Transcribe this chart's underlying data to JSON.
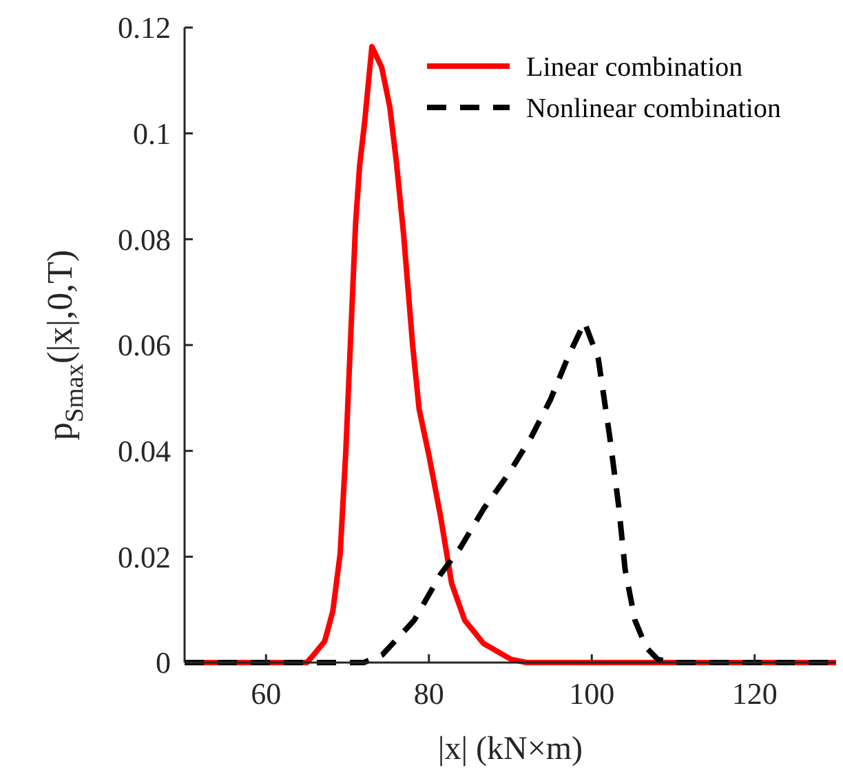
{
  "chart_data": {
    "type": "line",
    "xlabel": "|x| (kN×m)",
    "ylabel": "p$_{Smax}$(|x|,0,T)",
    "xlim": [
      50,
      130
    ],
    "ylim": [
      0,
      0.12
    ],
    "xticks": [
      60,
      80,
      100,
      120
    ],
    "yticks": [
      0,
      0.02,
      0.04,
      0.06,
      0.08,
      0.1,
      0.12
    ],
    "grid": false,
    "legend": "top right",
    "series": [
      {
        "name": "Linear combination",
        "color": "#ff0000",
        "line_style": "solid",
        "x": [
          50,
          65,
          65.6,
          67.2,
          68.2,
          69.1,
          69.8,
          70.4,
          71.0,
          71.5,
          72.1,
          73.0,
          74.2,
          75.2,
          76.0,
          76.9,
          78.0,
          78.8,
          80.0,
          81.4,
          82.8,
          84.4,
          86.7,
          90.1,
          92,
          130
        ],
        "values": [
          0,
          0,
          0.001,
          0.004,
          0.0097,
          0.0205,
          0.04,
          0.0617,
          0.083,
          0.094,
          0.102,
          0.1164,
          0.1125,
          0.105,
          0.0947,
          0.0808,
          0.06,
          0.0479,
          0.0392,
          0.0279,
          0.0149,
          0.008,
          0.0036,
          0.0006,
          0,
          0
        ]
      },
      {
        "name": "Nonlinear combination",
        "color": "#000000",
        "line_style": "dashed",
        "x": [
          50,
          72,
          74.3,
          78.2,
          81.4,
          83.9,
          86.7,
          89.8,
          92.6,
          94.9,
          97.1,
          99.1,
          100.8,
          102.2,
          103.3,
          104.1,
          105.3,
          106.7,
          108.1,
          110,
          130
        ],
        "values": [
          0,
          0,
          0.0015,
          0.008,
          0.0166,
          0.0218,
          0.029,
          0.0357,
          0.0427,
          0.0496,
          0.0578,
          0.0643,
          0.0574,
          0.0427,
          0.0296,
          0.0175,
          0.008,
          0.0028,
          0.0006,
          0,
          0
        ]
      }
    ]
  }
}
